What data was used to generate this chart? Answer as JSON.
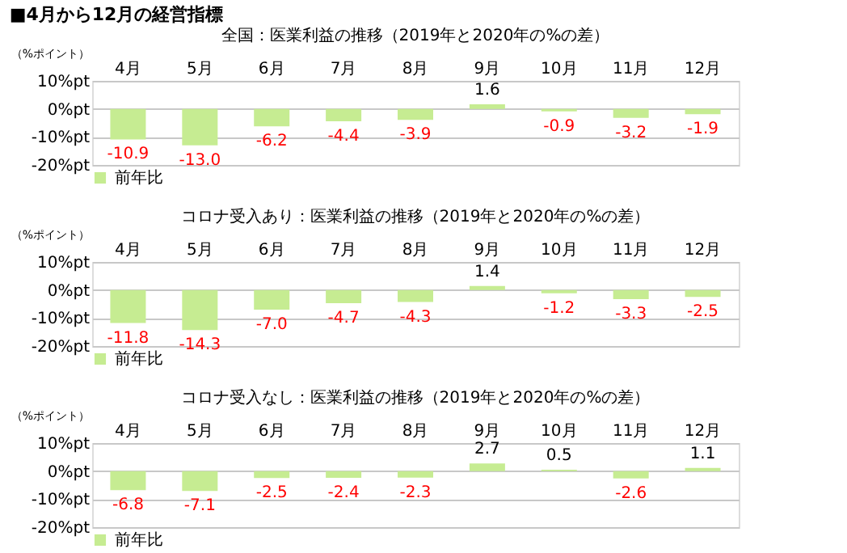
{
  "chart_data": [
    {
      "type": "bar",
      "title": "全国：医業利益の推移（2019年と2020年の%の差）",
      "annotations": [
        "■4月から12月の経営指標"
      ],
      "ylabel": "（%ポイント）",
      "categories": [
        "4月",
        "5月",
        "6月",
        "7月",
        "8月",
        "9月",
        "10月",
        "11月",
        "12月"
      ],
      "series": [
        {
          "name": "前年比",
          "color": "#c6ec92",
          "values": [
            -10.9,
            -13.0,
            -6.2,
            -4.4,
            -3.9,
            1.6,
            -0.9,
            -3.2,
            -1.9
          ],
          "value_labels": [
            "-10.9",
            "-13.0",
            "-6.2",
            "-4.4",
            "-3.9",
            "1.6",
            "-0.9",
            "-3.2",
            "-1.9"
          ]
        }
      ],
      "ylim": [
        -20,
        10
      ],
      "yticks": [
        {
          "value": 10,
          "label": "10%pt"
        },
        {
          "value": 0,
          "label": "0%pt"
        },
        {
          "value": -10,
          "label": "-10%pt"
        },
        {
          "value": -20,
          "label": "-20%pt"
        }
      ],
      "grid": "y",
      "legend": "bottom left"
    },
    {
      "type": "bar",
      "title": "コロナ受入あり：医業利益の推移（2019年と2020年の%の差）",
      "ylabel": "（%ポイント）",
      "categories": [
        "4月",
        "5月",
        "6月",
        "7月",
        "8月",
        "9月",
        "10月",
        "11月",
        "12月"
      ],
      "series": [
        {
          "name": "前年比",
          "color": "#c6ec92",
          "values": [
            -11.8,
            -14.3,
            -7.0,
            -4.7,
            -4.3,
            1.4,
            -1.2,
            -3.3,
            -2.5
          ],
          "value_labels": [
            "-11.8",
            "-14.3",
            "-7.0",
            "-4.7",
            "-4.3",
            "1.4",
            "-1.2",
            "-3.3",
            "-2.5"
          ]
        }
      ],
      "ylim": [
        -20,
        10
      ],
      "yticks": [
        {
          "value": 10,
          "label": "10%pt"
        },
        {
          "value": 0,
          "label": "0%pt"
        },
        {
          "value": -10,
          "label": "-10%pt"
        },
        {
          "value": -20,
          "label": "-20%pt"
        }
      ],
      "grid": "y",
      "legend": "bottom left"
    },
    {
      "type": "bar",
      "title": "コロナ受入なし：医業利益の推移（2019年と2020年の%の差）",
      "ylabel": "（%ポイント）",
      "categories": [
        "4月",
        "5月",
        "6月",
        "7月",
        "8月",
        "9月",
        "10月",
        "11月",
        "12月"
      ],
      "series": [
        {
          "name": "前年比",
          "color": "#c6ec92",
          "values": [
            -6.8,
            -7.1,
            -2.5,
            -2.4,
            -2.3,
            2.7,
            0.5,
            -2.6,
            1.1
          ],
          "value_labels": [
            "-6.8",
            "-7.1",
            "-2.5",
            "-2.4",
            "-2.3",
            "2.7",
            "0.5",
            "-2.6",
            "1.1"
          ]
        }
      ],
      "ylim": [
        -20,
        10
      ],
      "yticks": [
        {
          "value": 10,
          "label": "10%pt"
        },
        {
          "value": 0,
          "label": "0%pt"
        },
        {
          "value": -10,
          "label": "-10%pt"
        },
        {
          "value": -20,
          "label": "-20%pt"
        }
      ],
      "grid": "y",
      "legend": "bottom left"
    }
  ]
}
